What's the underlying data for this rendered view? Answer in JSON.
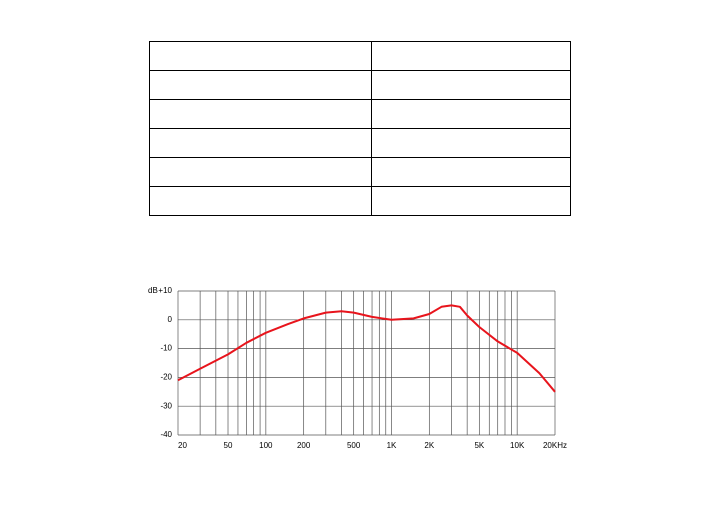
{
  "chart_data": {
    "type": "line",
    "y_label": "dB",
    "xscale": "log",
    "x": [
      20,
      30,
      50,
      70,
      100,
      150,
      200,
      300,
      400,
      500,
      700,
      1000,
      1500,
      2000,
      2500,
      3000,
      3500,
      4000,
      5000,
      7000,
      10000,
      15000,
      20000
    ],
    "values": [
      -21,
      -17,
      -12,
      -8,
      -4.5,
      -1.5,
      0.5,
      2.5,
      3,
      2.5,
      1,
      0,
      0.5,
      2,
      4.5,
      5,
      4.5,
      1.5,
      -2.5,
      -7.5,
      -11.5,
      -18.5,
      -25
    ],
    "color": "#e8141c",
    "xlim": [
      20,
      20000
    ],
    "xticks": [
      20,
      50,
      100,
      200,
      500,
      {
        "value": 1000,
        "label": "1K"
      },
      {
        "value": 2000,
        "label": "2K"
      },
      {
        "value": 5000,
        "label": "5K"
      },
      {
        "value": 10000,
        "label": "10K"
      },
      {
        "value": 20000,
        "label": "20KHz"
      }
    ],
    "xgrid": [
      20,
      30,
      40,
      50,
      60,
      70,
      80,
      90,
      100,
      200,
      300,
      400,
      500,
      600,
      700,
      800,
      900,
      1000,
      2000,
      3000,
      4000,
      5000,
      6000,
      7000,
      8000,
      9000,
      10000,
      20000
    ],
    "ylim": [
      -40,
      10
    ],
    "yticks": [
      {
        "value": 10,
        "label": "+10"
      },
      0,
      -10,
      -20,
      -30,
      -40
    ],
    "grid": true
  }
}
